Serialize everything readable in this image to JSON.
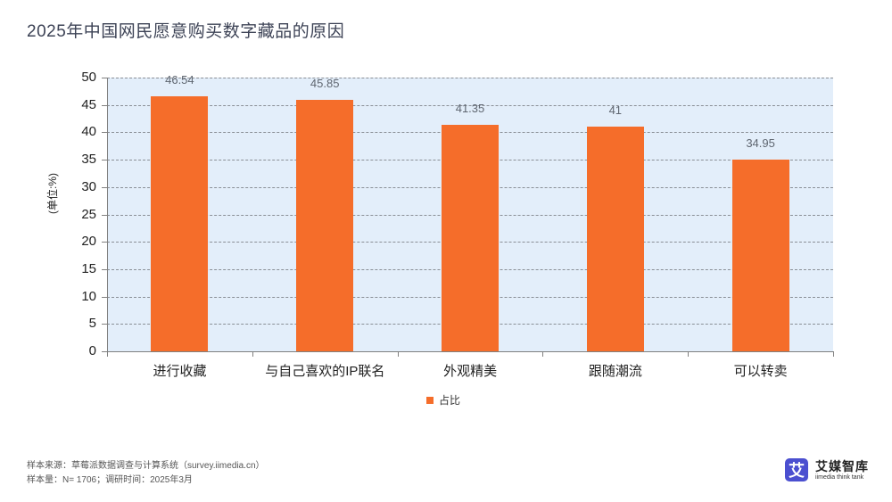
{
  "title": "2025年中国网民愿意购买数字藏品的原因",
  "chart_data": {
    "type": "bar",
    "title": "2025年中国网民愿意购买数字藏品的原因",
    "categories": [
      "进行收藏",
      "与自己喜欢的IP联名",
      "外观精美",
      "跟随潮流",
      "可以转卖"
    ],
    "series": [
      {
        "name": "占比",
        "values": [
          46.54,
          45.85,
          41.35,
          41,
          34.95
        ],
        "color": "#f56d2a"
      }
    ],
    "value_labels": [
      "46.54",
      "45.85",
      "41.35",
      "41",
      "34.95"
    ],
    "xlabel": "",
    "ylabel": "(单位:%)",
    "ylim": [
      0,
      50
    ],
    "yticks": [
      "0",
      "5",
      "10",
      "15",
      "20",
      "25",
      "30",
      "35",
      "40",
      "45",
      "50"
    ],
    "grid": true,
    "legend_position": "bottom",
    "plot_background": "#e3eefa"
  },
  "legend": {
    "label": "占比"
  },
  "footer": {
    "source": "样本来源：草莓派数据调查与计算系统（survey.iimedia.cn）",
    "sample": "样本量：N= 1706；调研时间：2025年3月"
  },
  "logo": {
    "cn": "艾媒智库",
    "en": "iimedia think tank",
    "icon_char": "艾",
    "icon_color": "#4b4fd0"
  }
}
